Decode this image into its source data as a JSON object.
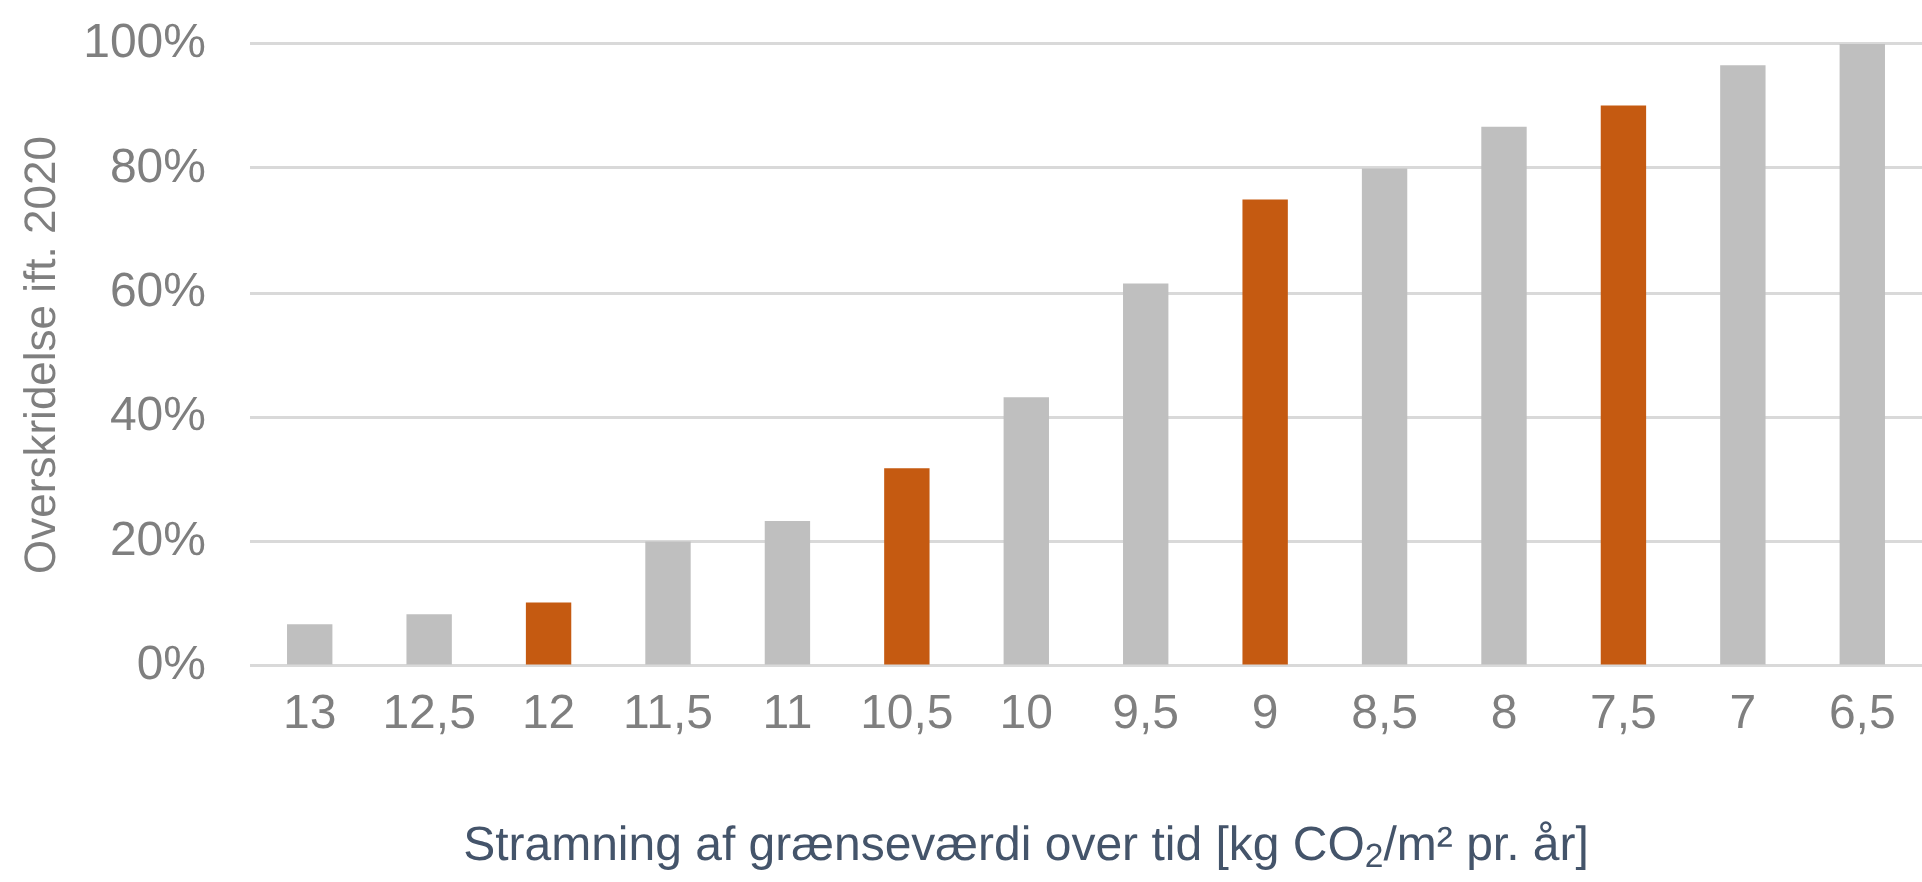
{
  "chart_data": {
    "type": "bar",
    "ylabel": "Overskridelse ift. 2020",
    "xlabel": "Stramning af grænseværdi over tid [kg CO$_{2}$/m² pr. år]",
    "categories": [
      "13",
      "12,5",
      "12",
      "11,5",
      "11",
      "10,5",
      "10",
      "9,5",
      "9",
      "8,5",
      "8",
      "7,5",
      "7",
      "6,5"
    ],
    "values": [
      6.7,
      8.3,
      10.2,
      20,
      23.3,
      31.8,
      43.2,
      61.5,
      75,
      80,
      86.7,
      90.1,
      96.6,
      100
    ],
    "colors": [
      "#bfbfbf",
      "#bfbfbf",
      "#c55a11",
      "#bfbfbf",
      "#bfbfbf",
      "#c55a11",
      "#bfbfbf",
      "#bfbfbf",
      "#c55a11",
      "#bfbfbf",
      "#bfbfbf",
      "#c55a11",
      "#bfbfbf",
      "#bfbfbf"
    ],
    "ylim": [
      0,
      100
    ],
    "yticks": [
      {
        "value": 0,
        "label": "0%"
      },
      {
        "value": 20,
        "label": "20%"
      },
      {
        "value": 40,
        "label": "40%"
      },
      {
        "value": 60,
        "label": "60%"
      },
      {
        "value": 80,
        "label": "80%"
      },
      {
        "value": 100,
        "label": "100%"
      }
    ],
    "grid": "y"
  }
}
